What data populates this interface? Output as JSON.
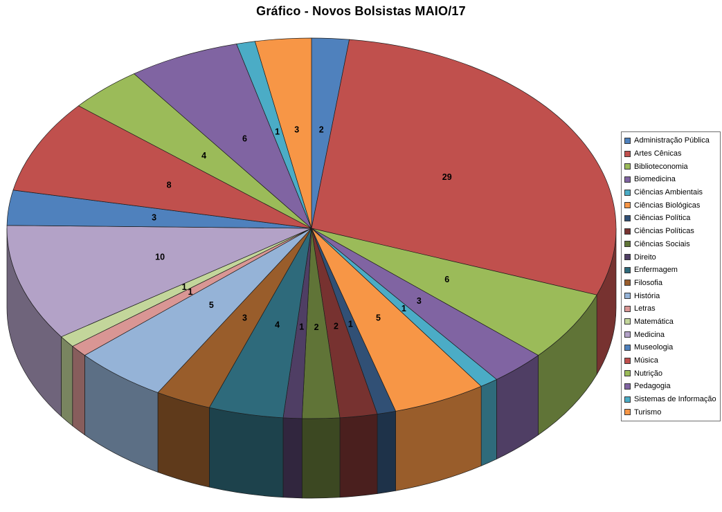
{
  "chart_data": {
    "type": "pie",
    "style": "3d",
    "title": "Gráfico - Novos Bolsistas MAIO/17",
    "total": 101,
    "start_angle_deg": 0,
    "direction": "clockwise",
    "data_labels": "values",
    "legend_position": "right",
    "background_color": "#FFFFFF",
    "categories": [
      "Administração Pública",
      "Artes Cênicas",
      "Biblioteconomia",
      "Biomedicina",
      "Ciências Ambientais",
      "Ciências Biológicas",
      "Ciências Política",
      "Ciências Políticas",
      "Ciências Sociais",
      "Direito",
      "Enfermagem",
      "Filosofia",
      "História",
      "Letras",
      "Matemática",
      "Medicina",
      "Museologia",
      "Música",
      "Nutrição",
      "Pedagogia",
      "Sistemas de Informação",
      "Turismo"
    ],
    "values": [
      2,
      29,
      6,
      3,
      1,
      5,
      1,
      2,
      2,
      1,
      4,
      3,
      5,
      1,
      1,
      10,
      3,
      8,
      4,
      6,
      1,
      3
    ],
    "colors": [
      "#4F81BD",
      "#C0504D",
      "#9BBB59",
      "#8064A2",
      "#4BACC6",
      "#F79646",
      "#315075",
      "#773230",
      "#607437",
      "#4F3E64",
      "#2E6A7B",
      "#995D2B",
      "#95B3D7",
      "#D99694",
      "#C3D69B",
      "#B3A2C7",
      "#4F81BD",
      "#C0504D",
      "#9BBB59",
      "#8064A2",
      "#4BACC6",
      "#F79646"
    ]
  }
}
